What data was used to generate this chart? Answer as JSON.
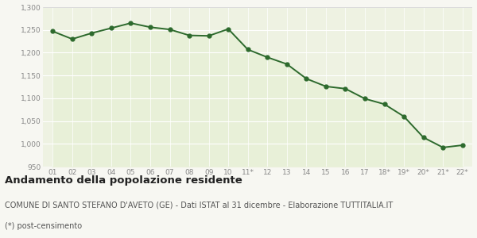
{
  "x_labels": [
    "01",
    "02",
    "03",
    "04",
    "05",
    "06",
    "07",
    "08",
    "09",
    "10",
    "11*",
    "12",
    "13",
    "14",
    "15",
    "16",
    "17",
    "18*",
    "19*",
    "20*",
    "21*",
    "22*"
  ],
  "y_values": [
    1247,
    1230,
    1243,
    1254,
    1265,
    1256,
    1251,
    1238,
    1237,
    1252,
    1207,
    1190,
    1175,
    1143,
    1126,
    1121,
    1099,
    1087,
    1060,
    1014,
    992,
    997
  ],
  "line_color": "#2d6a2d",
  "fill_color": "#e8f0d8",
  "marker": "o",
  "marker_size": 3.5,
  "line_width": 1.4,
  "ylim": [
    950,
    1300
  ],
  "yticks": [
    950,
    1000,
    1050,
    1100,
    1150,
    1200,
    1250,
    1300
  ],
  "figure_bg_color": "#f7f7f2",
  "plot_bg_color": "#eef2e2",
  "grid_color": "#ffffff",
  "title": "Andamento della popolazione residente",
  "subtitle": "COMUNE DI SANTO STEFANO D'AVETO (GE) - Dati ISTAT al 31 dicembre - Elaborazione TUTTITALIA.IT",
  "footnote": "(*) post-censimento",
  "title_fontsize": 9.5,
  "subtitle_fontsize": 7.0,
  "footnote_fontsize": 7.0,
  "tick_fontsize": 6.5,
  "tick_color": "#888888"
}
